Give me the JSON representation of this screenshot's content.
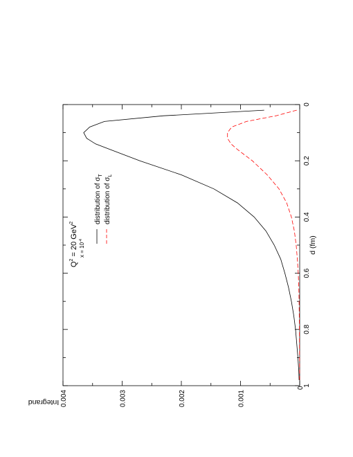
{
  "chart_data": {
    "type": "line",
    "orientation": "rotated-90-counterclockwise",
    "xlabel": "d (fm)",
    "ylabel": "Integrand",
    "xlim": [
      0,
      1
    ],
    "ylim": [
      0,
      0.004
    ],
    "x_ticks": [
      "0",
      "0.2",
      "0.4",
      "0.6",
      "0.8",
      "1"
    ],
    "y_ticks": [
      "0",
      "0.001",
      "0.002",
      "0.003",
      "0.004"
    ],
    "annotation": {
      "q_prefix": "Q",
      "q_exp": "2",
      "q_mid": " = 20 GeV",
      "q_unit_exp": "2",
      "x_prefix": "x = 10",
      "x_exp": "-4"
    },
    "legend_position": "upper-middle",
    "series": [
      {
        "name_base": "distribution of σ",
        "name_sub": "T",
        "style": "solid",
        "color": "#000000",
        "x": [
          0.02,
          0.04,
          0.06,
          0.08,
          0.1,
          0.12,
          0.14,
          0.16,
          0.2,
          0.25,
          0.3,
          0.35,
          0.4,
          0.45,
          0.5,
          0.55,
          0.6,
          0.65,
          0.7,
          0.75,
          0.8,
          0.85,
          0.9,
          0.95,
          0.98
        ],
        "y": [
          0.0006,
          0.0023,
          0.0033,
          0.00355,
          0.00365,
          0.0036,
          0.00345,
          0.0032,
          0.0027,
          0.002,
          0.00145,
          0.00105,
          0.00077,
          0.00057,
          0.00043,
          0.00032,
          0.00025,
          0.00019,
          0.00014,
          0.0001,
          7e-05,
          5e-05,
          3e-05,
          1.5e-05,
          1e-05
        ]
      },
      {
        "name_base": "distribution of σ",
        "name_sub": "L",
        "style": "dashed",
        "color": "#ff0000",
        "x": [
          0.02,
          0.04,
          0.06,
          0.08,
          0.1,
          0.12,
          0.14,
          0.16,
          0.2,
          0.25,
          0.3,
          0.35,
          0.4,
          0.45,
          0.5,
          0.55,
          0.6,
          0.65,
          0.7,
          0.8,
          0.9,
          0.98
        ],
        "y": [
          5e-05,
          0.0004,
          0.0009,
          0.00115,
          0.00122,
          0.00122,
          0.00116,
          0.00105,
          0.0008,
          0.00055,
          0.00035,
          0.00022,
          0.00014,
          9e-05,
          6e-05,
          4e-05,
          2.5e-05,
          1.5e-05,
          1e-05,
          5e-06,
          2e-06,
          1e-06
        ]
      }
    ]
  }
}
